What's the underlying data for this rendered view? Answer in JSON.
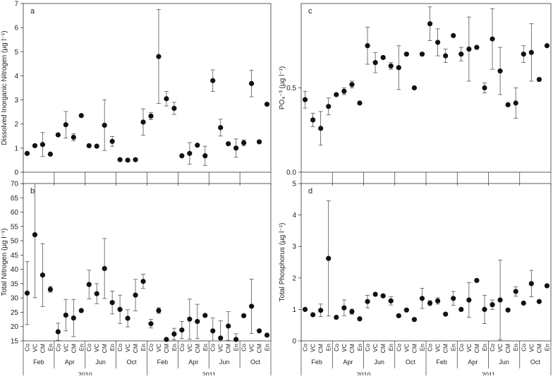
{
  "shared": {
    "categories": [
      "Co",
      "VC",
      "CM",
      "En",
      "Co",
      "VC",
      "CM",
      "En",
      "Co",
      "VC",
      "CM",
      "En",
      "Co",
      "VC",
      "CM",
      "En",
      "Co",
      "VC",
      "CM",
      "En",
      "Co",
      "VC",
      "CM",
      "En",
      "Co",
      "VC",
      "CM",
      "En",
      "Co",
      "VC",
      "CM",
      "En"
    ],
    "months": [
      "Feb",
      "Apr",
      "Jun",
      "Oct",
      "Feb",
      "Apr",
      "Jun",
      "Oct"
    ],
    "years": [
      "2010",
      "2011"
    ]
  },
  "chart_data": [
    {
      "id": "a",
      "type": "scatter",
      "panel_label": "a",
      "ylabel": "Dissolved Inorganic Nitrogen (µg l⁻¹)",
      "ylim": [
        0,
        7
      ],
      "yticks": [
        0,
        1,
        2,
        3,
        4,
        5,
        6,
        7
      ],
      "show_x_labels": false,
      "values": [
        0.78,
        1.1,
        1.15,
        0.75,
        1.55,
        1.97,
        1.45,
        2.35,
        1.1,
        1.08,
        1.95,
        1.28,
        0.52,
        0.5,
        0.52,
        2.08,
        2.33,
        4.8,
        3.05,
        2.65,
        0.68,
        0.78,
        1.12,
        0.68,
        3.8,
        1.85,
        1.18,
        1.0,
        1.22,
        3.68,
        1.26,
        2.82
      ],
      "err": [
        0,
        0,
        0.5,
        0,
        0,
        0.55,
        0.15,
        0,
        0,
        0,
        1.05,
        0.2,
        0,
        0,
        0,
        0.55,
        0.15,
        1.95,
        0.3,
        0.25,
        0,
        0.45,
        0,
        0.4,
        0.45,
        0.35,
        0,
        0.38,
        0.12,
        0.55,
        0,
        0
      ]
    },
    {
      "id": "c",
      "type": "scatter",
      "panel_label": "c",
      "ylabel": "PO₄⁻³ (µg l⁻¹)",
      "ylim": [
        0,
        1.0
      ],
      "yticks": [
        0.0,
        0.5
      ],
      "show_x_labels": false,
      "values": [
        0.43,
        0.31,
        0.26,
        0.39,
        0.46,
        0.48,
        0.52,
        0.41,
        0.75,
        0.65,
        0.68,
        0.63,
        0.62,
        0.7,
        0.5,
        0.7,
        0.88,
        0.77,
        0.69,
        0.81,
        0.7,
        0.73,
        0.74,
        0.5,
        0.79,
        0.6,
        0.4,
        0.41,
        0.7,
        0.71,
        0.55,
        0.75
      ],
      "err": [
        0.05,
        0.04,
        0.1,
        0.05,
        0,
        0.02,
        0.02,
        0,
        0.11,
        0.06,
        0,
        0.02,
        0.13,
        0,
        0,
        0,
        0.1,
        0.08,
        0.04,
        0,
        0.04,
        0.19,
        0,
        0.03,
        0.18,
        0.14,
        0,
        0.09,
        0.05,
        0.17,
        0,
        0
      ]
    },
    {
      "id": "b",
      "type": "scatter",
      "panel_label": "b",
      "ylabel": "Total Nitrogen (µg l⁻¹)",
      "ylim": [
        15,
        70
      ],
      "yticks": [
        15,
        20,
        25,
        30,
        35,
        40,
        45,
        50,
        55,
        60,
        65,
        70
      ],
      "show_x_labels": true,
      "values": [
        31.7,
        52.1,
        38.0,
        33.0,
        18.2,
        24.0,
        23.0,
        25.6,
        34.7,
        31.5,
        40.3,
        28.4,
        26.0,
        22.9,
        31.0,
        35.8,
        21.0,
        25.6,
        15.5,
        17.4,
        18.8,
        22.6,
        21.8,
        23.9,
        18.5,
        16.0,
        20.2,
        15.5,
        23.8,
        27.1,
        18.5,
        17.0
      ],
      "err": [
        11,
        22,
        11,
        1,
        3,
        5.5,
        6.5,
        0,
        5,
        3.5,
        10.5,
        4,
        5,
        3,
        5.5,
        2.5,
        1.5,
        1,
        0,
        2,
        3,
        7,
        6,
        0,
        4.5,
        6,
        5,
        2,
        0,
        9.5,
        0,
        0
      ]
    },
    {
      "id": "d",
      "type": "scatter",
      "panel_label": "d",
      "ylabel": "Total Phosphorus (µg l⁻¹)",
      "ylim": [
        0,
        5
      ],
      "yticks": [
        0,
        1,
        2,
        3,
        4,
        5
      ],
      "show_x_labels": true,
      "values": [
        1.0,
        0.83,
        0.97,
        2.62,
        0.75,
        1.05,
        0.93,
        0.7,
        1.25,
        1.48,
        1.43,
        1.27,
        0.8,
        0.98,
        0.68,
        1.35,
        1.2,
        1.27,
        0.85,
        1.35,
        1.0,
        1.3,
        1.92,
        1.0,
        1.15,
        1.3,
        0.98,
        1.57,
        1.2,
        1.82,
        1.25,
        1.75
      ],
      "err": [
        0,
        0,
        0.2,
        1.83,
        0,
        0.25,
        0.08,
        0,
        0.2,
        0,
        0,
        0.13,
        0,
        0,
        0,
        0.32,
        0.08,
        0.1,
        0,
        0.22,
        0,
        0.55,
        0,
        0.45,
        0.15,
        1.27,
        0,
        0.15,
        0,
        0.42,
        0,
        0
      ]
    }
  ]
}
